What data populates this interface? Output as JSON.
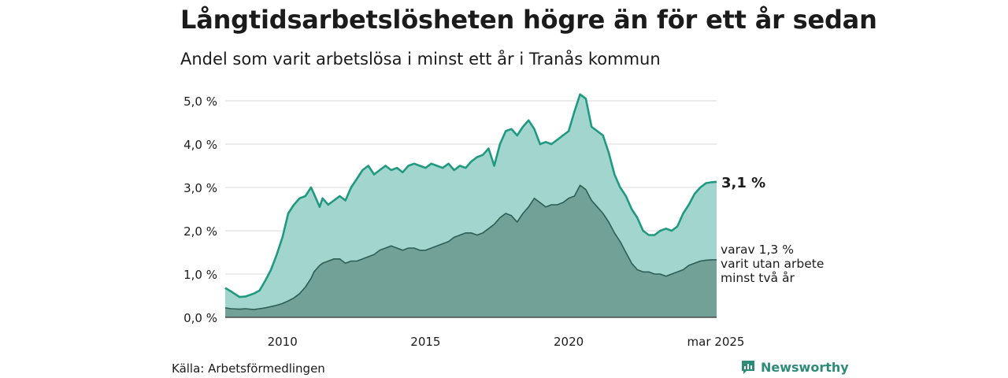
{
  "title": "Långtidsarbetslösheten högre än för ett år sedan",
  "subtitle": "Andel som varit arbetslösa i minst ett år i Tranås kommun",
  "source": "Källa: Arbetsförmedlingen",
  "brand": "Newsworthy",
  "colors": {
    "total_line": "#1f9a80",
    "total_fill": "#a3d5cf",
    "longterm_line": "#2e5f55",
    "longterm_fill": "#72a198",
    "grid": "#d9d9d9"
  },
  "chart_data": {
    "type": "area",
    "x_ticks": [
      {
        "value": 2010,
        "label": "2010"
      },
      {
        "value": 2015,
        "label": "2015"
      },
      {
        "value": 2020,
        "label": "2020"
      },
      {
        "value": 2025.17,
        "label": "mar 2025"
      }
    ],
    "y_ticks": [
      {
        "value": 0,
        "label": "0,0 %"
      },
      {
        "value": 1,
        "label": "1,0 %"
      },
      {
        "value": 2,
        "label": "2,0 %"
      },
      {
        "value": 3,
        "label": "3,0 %"
      },
      {
        "value": 4,
        "label": "4,0 %"
      },
      {
        "value": 5,
        "label": "5,0 %"
      }
    ],
    "xlim": [
      2008.0,
      2025.17
    ],
    "ylim": [
      0,
      5.0
    ],
    "grid": true,
    "series": [
      {
        "name": "",
        "end_label": "3,1 %",
        "x": [
          2008.0,
          2008.2,
          2008.5,
          2008.7,
          2009.0,
          2009.2,
          2009.4,
          2009.6,
          2009.8,
          2010.0,
          2010.2,
          2010.4,
          2010.6,
          2010.8,
          2011.0,
          2011.1,
          2011.3,
          2011.4,
          2011.6,
          2011.8,
          2012.0,
          2012.2,
          2012.4,
          2012.6,
          2012.8,
          2013.0,
          2013.2,
          2013.4,
          2013.6,
          2013.8,
          2014.0,
          2014.2,
          2014.4,
          2014.6,
          2014.8,
          2015.0,
          2015.2,
          2015.4,
          2015.6,
          2015.8,
          2016.0,
          2016.2,
          2016.4,
          2016.6,
          2016.8,
          2017.0,
          2017.2,
          2017.4,
          2017.6,
          2017.8,
          2018.0,
          2018.2,
          2018.4,
          2018.6,
          2018.8,
          2019.0,
          2019.2,
          2019.4,
          2019.6,
          2019.8,
          2020.0,
          2020.2,
          2020.4,
          2020.6,
          2020.8,
          2021.0,
          2021.2,
          2021.4,
          2021.6,
          2021.8,
          2022.0,
          2022.2,
          2022.4,
          2022.6,
          2022.8,
          2023.0,
          2023.2,
          2023.4,
          2023.6,
          2023.8,
          2024.0,
          2024.2,
          2024.4,
          2024.6,
          2024.8,
          2025.0,
          2025.17
        ],
        "values": [
          0.68,
          0.6,
          0.47,
          0.48,
          0.55,
          0.62,
          0.85,
          1.1,
          1.45,
          1.85,
          2.4,
          2.6,
          2.75,
          2.8,
          3.0,
          2.85,
          2.55,
          2.75,
          2.6,
          2.7,
          2.8,
          2.7,
          3.0,
          3.2,
          3.4,
          3.5,
          3.3,
          3.4,
          3.5,
          3.4,
          3.45,
          3.35,
          3.5,
          3.55,
          3.5,
          3.45,
          3.55,
          3.5,
          3.45,
          3.55,
          3.4,
          3.5,
          3.45,
          3.6,
          3.7,
          3.75,
          3.9,
          3.5,
          4.0,
          4.3,
          4.35,
          4.2,
          4.4,
          4.55,
          4.35,
          4.0,
          4.05,
          4.0,
          4.1,
          4.2,
          4.3,
          4.75,
          5.15,
          5.05,
          4.4,
          4.3,
          4.2,
          3.8,
          3.3,
          3.0,
          2.8,
          2.5,
          2.3,
          2.0,
          1.9,
          1.9,
          2.0,
          2.05,
          2.0,
          2.1,
          2.4,
          2.6,
          2.85,
          3.0,
          3.1,
          3.12,
          3.13
        ]
      },
      {
        "name": "",
        "end_label": [
          "varav 1,3 %",
          "varit utan arbete",
          "minst två år"
        ],
        "x": [
          2008.0,
          2008.2,
          2008.5,
          2008.7,
          2009.0,
          2009.2,
          2009.4,
          2009.6,
          2009.8,
          2010.0,
          2010.2,
          2010.4,
          2010.6,
          2010.8,
          2011.0,
          2011.1,
          2011.3,
          2011.4,
          2011.6,
          2011.8,
          2012.0,
          2012.2,
          2012.4,
          2012.6,
          2012.8,
          2013.0,
          2013.2,
          2013.4,
          2013.6,
          2013.8,
          2014.0,
          2014.2,
          2014.4,
          2014.6,
          2014.8,
          2015.0,
          2015.2,
          2015.4,
          2015.6,
          2015.8,
          2016.0,
          2016.2,
          2016.4,
          2016.6,
          2016.8,
          2017.0,
          2017.2,
          2017.4,
          2017.6,
          2017.8,
          2018.0,
          2018.2,
          2018.4,
          2018.6,
          2018.8,
          2019.0,
          2019.2,
          2019.4,
          2019.6,
          2019.8,
          2020.0,
          2020.2,
          2020.4,
          2020.6,
          2020.8,
          2021.0,
          2021.2,
          2021.4,
          2021.6,
          2021.8,
          2022.0,
          2022.2,
          2022.4,
          2022.6,
          2022.8,
          2023.0,
          2023.2,
          2023.4,
          2023.6,
          2023.8,
          2024.0,
          2024.2,
          2024.4,
          2024.6,
          2024.8,
          2025.0,
          2025.17
        ],
        "values": [
          0.22,
          0.2,
          0.19,
          0.2,
          0.18,
          0.2,
          0.22,
          0.25,
          0.28,
          0.32,
          0.38,
          0.45,
          0.55,
          0.7,
          0.9,
          1.05,
          1.2,
          1.25,
          1.3,
          1.35,
          1.35,
          1.25,
          1.3,
          1.3,
          1.35,
          1.4,
          1.45,
          1.55,
          1.6,
          1.65,
          1.6,
          1.55,
          1.6,
          1.6,
          1.55,
          1.55,
          1.6,
          1.65,
          1.7,
          1.75,
          1.85,
          1.9,
          1.95,
          1.95,
          1.9,
          1.95,
          2.05,
          2.15,
          2.3,
          2.4,
          2.35,
          2.2,
          2.4,
          2.55,
          2.75,
          2.65,
          2.55,
          2.6,
          2.6,
          2.65,
          2.75,
          2.8,
          3.05,
          2.95,
          2.7,
          2.55,
          2.4,
          2.2,
          1.95,
          1.75,
          1.5,
          1.25,
          1.1,
          1.05,
          1.05,
          1.0,
          1.0,
          0.95,
          1.0,
          1.05,
          1.1,
          1.2,
          1.25,
          1.3,
          1.32,
          1.33,
          1.33
        ]
      }
    ]
  }
}
